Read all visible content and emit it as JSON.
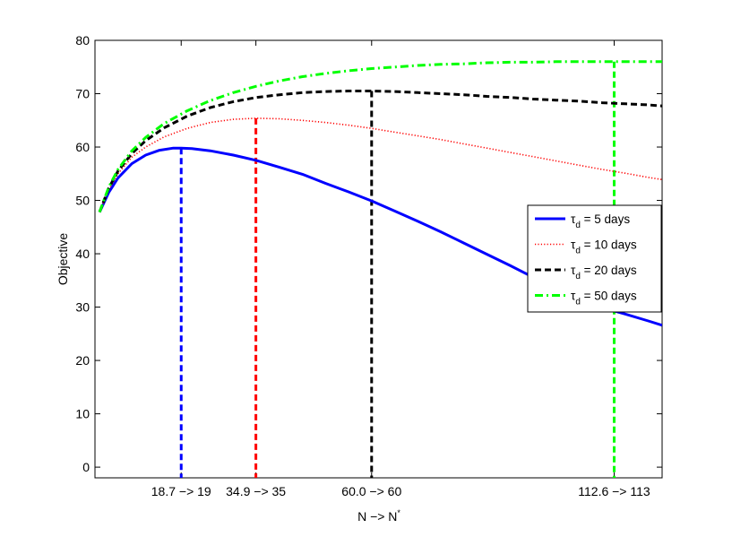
{
  "chart_data": {
    "type": "line",
    "xlabel": "N −> N",
    "xlabel_sup": "*",
    "ylabel": "Objective",
    "xlim": [
      0,
      123
    ],
    "ylim": [
      -2,
      80
    ],
    "yticks": [
      0,
      10,
      20,
      30,
      40,
      50,
      60,
      70,
      80
    ],
    "xticks": [
      {
        "value": 18.7,
        "label": "18.7 −> 19"
      },
      {
        "value": 34.9,
        "label": "34.9 −> 35"
      },
      {
        "value": 60.0,
        "label": "60.0 −> 60"
      },
      {
        "value": 112.6,
        "label": "112.6 −> 113"
      }
    ],
    "grid": false,
    "legend_position": "right",
    "series": [
      {
        "name": "τd = 5 days",
        "name_sym": "τ",
        "name_sub": "d",
        "name_rest": " = 5 days",
        "color": "#0000ff",
        "style": "solid",
        "x": [
          1,
          3,
          5,
          8,
          11,
          14,
          17,
          18.7,
          21,
          25,
          30,
          35,
          40,
          45,
          50,
          55,
          60,
          65,
          70,
          75,
          80,
          85,
          90,
          95,
          100,
          105,
          110,
          115,
          120,
          123
        ],
        "y": [
          47.8,
          51.5,
          54.2,
          56.9,
          58.5,
          59.4,
          59.8,
          59.8,
          59.7,
          59.3,
          58.5,
          57.5,
          56.2,
          54.9,
          53.2,
          51.6,
          49.9,
          48.0,
          46.1,
          44.1,
          42.0,
          39.9,
          37.8,
          35.6,
          33.4,
          31.2,
          29.9,
          28.7,
          27.4,
          26.6
        ]
      },
      {
        "name": "τd = 10 days",
        "name_sym": "τ",
        "name_sub": "d",
        "name_rest": " = 10 days",
        "color": "#ff0000",
        "style": "dotted",
        "x": [
          1,
          3,
          5,
          8,
          11,
          15,
          20,
          25,
          30,
          34.9,
          40,
          45,
          50,
          55,
          60,
          65,
          70,
          75,
          80,
          85,
          90,
          95,
          100,
          105,
          110,
          115,
          120,
          123
        ],
        "y": [
          47.8,
          52.0,
          55.0,
          58.1,
          60.0,
          61.9,
          63.5,
          64.6,
          65.2,
          65.4,
          65.3,
          65.0,
          64.6,
          64.1,
          63.5,
          62.8,
          62.1,
          61.4,
          60.6,
          59.8,
          59.0,
          58.2,
          57.4,
          56.6,
          55.8,
          55.1,
          54.3,
          53.9
        ]
      },
      {
        "name": "τd = 20 days",
        "name_sym": "τ",
        "name_sub": "d",
        "name_rest": " = 20 days",
        "color": "#000000",
        "style": "dashed",
        "x": [
          1,
          3,
          5,
          8,
          11,
          15,
          20,
          25,
          30,
          35,
          40,
          45,
          50,
          55,
          60,
          65,
          70,
          75,
          80,
          85,
          90,
          95,
          100,
          105,
          110,
          115,
          120,
          123
        ],
        "y": [
          47.8,
          52.3,
          55.5,
          58.8,
          61.2,
          63.6,
          65.8,
          67.4,
          68.5,
          69.3,
          69.8,
          70.2,
          70.4,
          70.5,
          70.5,
          70.4,
          70.2,
          70.0,
          69.8,
          69.5,
          69.3,
          69.0,
          68.8,
          68.6,
          68.3,
          68.1,
          67.9,
          67.7
        ]
      },
      {
        "name": "τd = 50 days",
        "name_sym": "τ",
        "name_sub": "d",
        "name_rest": " = 50 days",
        "color": "#00ff00",
        "style": "dashdot",
        "x": [
          1,
          3,
          5,
          8,
          11,
          15,
          20,
          25,
          30,
          35,
          40,
          45,
          50,
          55,
          60,
          65,
          70,
          75,
          80,
          85,
          90,
          95,
          100,
          105,
          110,
          112.6,
          115,
          120,
          123
        ],
        "y": [
          47.8,
          52.5,
          55.8,
          59.3,
          61.8,
          64.4,
          66.8,
          68.7,
          70.2,
          71.4,
          72.4,
          73.2,
          73.8,
          74.3,
          74.7,
          75.0,
          75.3,
          75.5,
          75.6,
          75.8,
          75.9,
          75.9,
          76.0,
          76.0,
          76.0,
          76.0,
          76.0,
          76.0,
          76.0
        ]
      }
    ],
    "markers": [
      {
        "x": 18.7,
        "y": 59.8,
        "color": "#0000ff"
      },
      {
        "x": 34.9,
        "y": 65.4,
        "color": "#ff0000"
      },
      {
        "x": 60.0,
        "y": 70.5,
        "color": "#000000"
      },
      {
        "x": 112.6,
        "y": 76.0,
        "color": "#00ff00"
      }
    ]
  }
}
